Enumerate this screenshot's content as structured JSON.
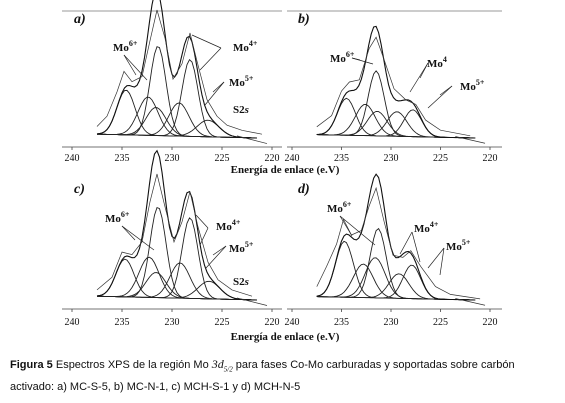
{
  "figure": {
    "x_label": "Energía de enlace (e.V)",
    "x_ticks": [
      240,
      235,
      230,
      225,
      220
    ],
    "x_range": [
      240,
      220
    ]
  },
  "chart_data": [
    {
      "type": "line",
      "panel": "a)",
      "xlabel": "Energía de enlace (e.V)",
      "xlim": [
        240,
        220
      ],
      "x_reversed": true,
      "annotations": [
        "Mo6+",
        "Mo4+",
        "Mo5+",
        "S2s"
      ],
      "spectrum": [
        [
          237.5,
          0.09
        ],
        [
          236.5,
          0.17
        ],
        [
          235.5,
          0.36
        ],
        [
          234.8,
          0.52
        ],
        [
          234.0,
          0.44
        ],
        [
          233.0,
          0.48
        ],
        [
          232.2,
          0.76
        ],
        [
          231.5,
          1.0
        ],
        [
          230.7,
          0.78
        ],
        [
          229.9,
          0.46
        ],
        [
          229.0,
          0.58
        ],
        [
          228.2,
          0.82
        ],
        [
          227.5,
          0.6
        ],
        [
          226.5,
          0.3
        ],
        [
          225.5,
          0.17
        ],
        [
          224.5,
          0.1
        ],
        [
          223.0,
          0.06
        ],
        [
          221.0,
          0.03
        ]
      ],
      "components": [
        {
          "name": "Mo6+",
          "peaks": [
            {
              "center": 234.6,
              "height": 0.35,
              "sigma": 0.9
            },
            {
              "center": 231.6,
              "height": 0.22,
              "sigma": 1.0
            }
          ]
        },
        {
          "name": "Mo5+",
          "peaks": [
            {
              "center": 232.4,
              "height": 0.3,
              "sigma": 1.0
            },
            {
              "center": 229.3,
              "height": 0.26,
              "sigma": 1.0
            }
          ]
        },
        {
          "name": "Mo4+",
          "peaks": [
            {
              "center": 231.4,
              "height": 0.7,
              "sigma": 0.8
            },
            {
              "center": 228.2,
              "height": 0.6,
              "sigma": 0.8
            }
          ]
        },
        {
          "name": "S2s",
          "peaks": [
            {
              "center": 226.4,
              "height": 0.13,
              "sigma": 1.1
            }
          ]
        }
      ]
    },
    {
      "type": "line",
      "panel": "b)",
      "xlabel": "",
      "xlim": [
        240,
        220
      ],
      "x_reversed": true,
      "annotations": [
        "Mo6+",
        "Mo4",
        "Mo5+"
      ],
      "spectrum": [
        [
          237.5,
          0.1
        ],
        [
          236.0,
          0.2
        ],
        [
          235.0,
          0.42
        ],
        [
          234.2,
          0.5
        ],
        [
          233.2,
          0.52
        ],
        [
          232.2,
          0.8
        ],
        [
          231.5,
          0.9
        ],
        [
          230.7,
          0.7
        ],
        [
          229.7,
          0.44
        ],
        [
          228.5,
          0.34
        ],
        [
          227.5,
          0.3
        ],
        [
          226.5,
          0.16
        ],
        [
          225.0,
          0.07
        ],
        [
          222.0,
          0.02
        ]
      ],
      "components": [
        {
          "name": "Mo6+",
          "peaks": [
            {
              "center": 234.5,
              "height": 0.33,
              "sigma": 0.9
            },
            {
              "center": 231.4,
              "height": 0.22,
              "sigma": 1.0
            }
          ]
        },
        {
          "name": "Mo5+",
          "peaks": [
            {
              "center": 232.6,
              "height": 0.28,
              "sigma": 1.0
            },
            {
              "center": 229.4,
              "height": 0.22,
              "sigma": 1.0
            }
          ]
        },
        {
          "name": "Mo4",
          "peaks": [
            {
              "center": 231.5,
              "height": 0.58,
              "sigma": 0.8
            },
            {
              "center": 227.8,
              "height": 0.24,
              "sigma": 0.9
            }
          ]
        }
      ]
    },
    {
      "type": "line",
      "panel": "c)",
      "xlabel": "Energía de enlace (e.V)",
      "xlim": [
        240,
        220
      ],
      "x_reversed": true,
      "annotations": [
        "Mo6+",
        "Mo4+",
        "Mo5+",
        "S2s"
      ],
      "spectrum": [
        [
          237.5,
          0.08
        ],
        [
          236.0,
          0.18
        ],
        [
          235.0,
          0.38
        ],
        [
          234.0,
          0.36
        ],
        [
          233.0,
          0.46
        ],
        [
          232.2,
          0.78
        ],
        [
          231.5,
          1.0
        ],
        [
          230.7,
          0.74
        ],
        [
          229.8,
          0.46
        ],
        [
          229.0,
          0.62
        ],
        [
          228.2,
          0.86
        ],
        [
          227.4,
          0.58
        ],
        [
          226.4,
          0.3
        ],
        [
          225.4,
          0.16
        ],
        [
          224.0,
          0.08
        ],
        [
          222.0,
          0.03
        ]
      ],
      "components": [
        {
          "name": "Mo6+",
          "peaks": [
            {
              "center": 234.7,
              "height": 0.3,
              "sigma": 0.9
            },
            {
              "center": 231.6,
              "height": 0.2,
              "sigma": 1.0
            }
          ]
        },
        {
          "name": "Mo5+",
          "peaks": [
            {
              "center": 232.3,
              "height": 0.32,
              "sigma": 1.0
            },
            {
              "center": 229.2,
              "height": 0.28,
              "sigma": 1.0
            }
          ]
        },
        {
          "name": "Mo4+",
          "peaks": [
            {
              "center": 231.4,
              "height": 0.72,
              "sigma": 0.8
            },
            {
              "center": 228.2,
              "height": 0.64,
              "sigma": 0.8
            }
          ]
        },
        {
          "name": "S2s",
          "peaks": [
            {
              "center": 226.3,
              "height": 0.14,
              "sigma": 1.1
            }
          ]
        }
      ]
    },
    {
      "type": "line",
      "panel": "d)",
      "xlabel": "",
      "xlim": [
        240,
        220
      ],
      "x_reversed": true,
      "annotations": [
        "Mo6+",
        "Mo4+",
        "Mo5+"
      ],
      "spectrum": [
        [
          237.5,
          0.12
        ],
        [
          236.5,
          0.3
        ],
        [
          235.5,
          0.5
        ],
        [
          234.8,
          0.72
        ],
        [
          234.0,
          0.58
        ],
        [
          233.0,
          0.62
        ],
        [
          232.2,
          0.84
        ],
        [
          231.5,
          1.0
        ],
        [
          230.7,
          0.7
        ],
        [
          229.8,
          0.4
        ],
        [
          228.8,
          0.38
        ],
        [
          228.0,
          0.44
        ],
        [
          227.0,
          0.3
        ],
        [
          225.5,
          0.12
        ],
        [
          224.0,
          0.05
        ],
        [
          221.0,
          0.01
        ]
      ],
      "components": [
        {
          "name": "Mo6+",
          "peaks": [
            {
              "center": 234.7,
              "height": 0.5,
              "sigma": 0.9
            },
            {
              "center": 231.6,
              "height": 0.36,
              "sigma": 1.0
            }
          ]
        },
        {
          "name": "Mo5+",
          "peaks": [
            {
              "center": 232.8,
              "height": 0.3,
              "sigma": 1.0
            },
            {
              "center": 229.2,
              "height": 0.22,
              "sigma": 1.0
            }
          ]
        },
        {
          "name": "Mo4+",
          "peaks": [
            {
              "center": 231.3,
              "height": 0.62,
              "sigma": 0.8
            },
            {
              "center": 227.9,
              "height": 0.3,
              "sigma": 0.9
            }
          ]
        }
      ]
    }
  ],
  "caption": {
    "label": "Figura 5",
    "text_1": " Espectros XPS de la región Mo ",
    "orbital": "3d",
    "orbital_sub": "5/2",
    "text_2": " para fases Co-Mo carburadas y soportadas sobre carbón activado: a) MC-S-5, b) MC-N-1, c) MCH-S-1 y d) MCH-N-5"
  }
}
